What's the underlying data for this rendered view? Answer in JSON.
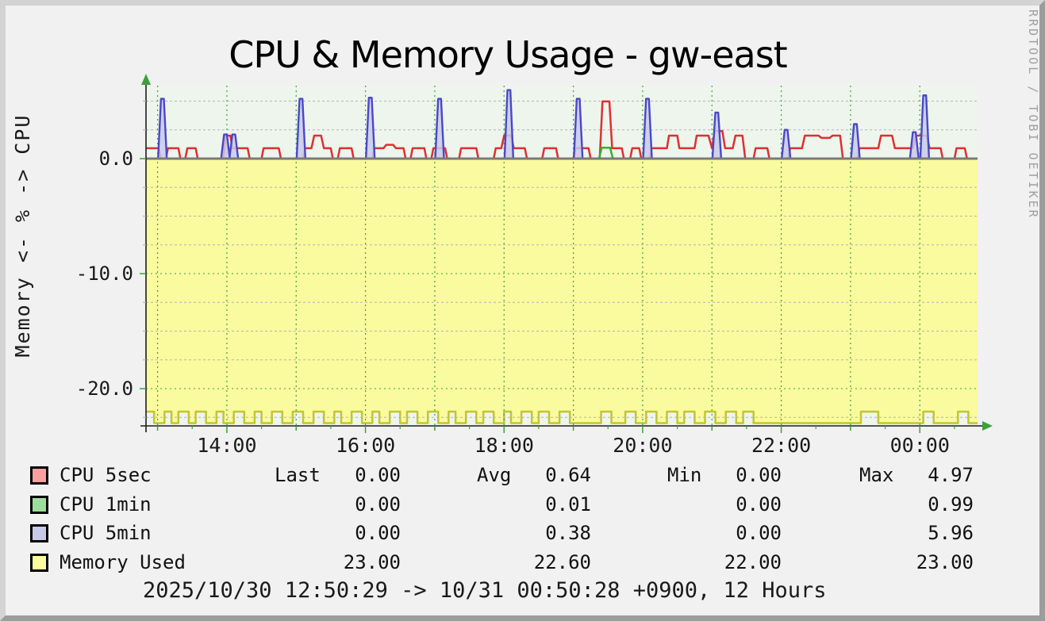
{
  "header": {
    "title": "CPU & Memory Usage - gw-east"
  },
  "watermark": "RRDTOOL / TOBI OETIKER",
  "footer": {
    "range_text": "2025/10/30 12:50:29 -> 10/31 00:50:28 +0900, 12 Hours"
  },
  "colors": {
    "page_bg": "#f1f1f1",
    "plot_bg": "#eef5ec",
    "frame_light": "#d3d3d3",
    "frame_dark": "#9c9c9c",
    "grid_major": "#3aa23a",
    "grid_minor": "#b4b4b4",
    "zero_line": "#7a7a7a",
    "axis": "#1c1c1c",
    "cpu5sec_line": "#dd3030",
    "cpu1min_line": "#2fb32f",
    "cpu5min_line": "#4848c8",
    "cpu5min_fill": "#c9c9e9",
    "memory_fill": "#fafa9e",
    "memory_line": "#c2c62e"
  },
  "legend": {
    "headers": [
      "Last",
      "Avg",
      "Min",
      "Max"
    ],
    "rows": [
      {
        "label": "CPU 5sec",
        "swatch": "#f89f9f",
        "last": "0.00",
        "avg": "0.64",
        "min": "0.00",
        "max": "4.97"
      },
      {
        "label": "CPU 1min",
        "swatch": "#9cdf9c",
        "last": "0.00",
        "avg": "0.01",
        "min": "0.00",
        "max": "0.99"
      },
      {
        "label": "CPU 5min",
        "swatch": "#c9c9e9",
        "last": "0.00",
        "avg": "0.38",
        "min": "0.00",
        "max": "5.96"
      },
      {
        "label": "Memory Used",
        "swatch": "#fafa9e",
        "last": "23.00",
        "avg": "22.60",
        "min": "22.00",
        "max": "23.00"
      }
    ]
  },
  "chart_data": {
    "type": "area",
    "title": "CPU & Memory Usage - gw-east",
    "xlabel": "",
    "ylabel": "Memory <- % -> CPU",
    "x_range_hours": [
      12.833,
      24.833
    ],
    "ylim": [
      -23.2,
      6.3
    ],
    "grid": true,
    "legend_position": "bottom",
    "x_ticks": [
      {
        "t": 14,
        "label": "14:00"
      },
      {
        "t": 16,
        "label": "16:00"
      },
      {
        "t": 18,
        "label": "18:00"
      },
      {
        "t": 20,
        "label": "20:00"
      },
      {
        "t": 22,
        "label": "22:00"
      },
      {
        "t": 24,
        "label": "00:00"
      }
    ],
    "y_ticks": [
      {
        "v": 0,
        "label": "0.0"
      },
      {
        "v": -10,
        "label": "-10.0"
      },
      {
        "v": -20,
        "label": "-20.0"
      }
    ],
    "y_minor_ticks": [
      5,
      2.5,
      -2.5,
      -5,
      -7.5,
      -12.5,
      -15,
      -17.5,
      -22.5
    ],
    "x_grid_hours": [
      13,
      14,
      15,
      16,
      17,
      18,
      19,
      20,
      21,
      22,
      23,
      24
    ],
    "series": [
      {
        "name": "CPU 5sec",
        "type": "line",
        "unit": "%",
        "points": [
          [
            12.83,
            0.9
          ],
          [
            13.02,
            0.9
          ],
          [
            13.05,
            0
          ],
          [
            13.12,
            0
          ],
          [
            13.15,
            0.9
          ],
          [
            13.3,
            0.9
          ],
          [
            13.33,
            0
          ],
          [
            13.4,
            0
          ],
          [
            13.43,
            0.9
          ],
          [
            13.55,
            0.9
          ],
          [
            13.58,
            0
          ],
          [
            13.95,
            0
          ],
          [
            13.98,
            2
          ],
          [
            14.05,
            2
          ],
          [
            14.08,
            0.9
          ],
          [
            14.3,
            0.9
          ],
          [
            14.33,
            0
          ],
          [
            14.5,
            0
          ],
          [
            14.53,
            0.9
          ],
          [
            14.75,
            0.9
          ],
          [
            14.78,
            0
          ],
          [
            15.1,
            0
          ],
          [
            15.13,
            0.9
          ],
          [
            15.22,
            0.9
          ],
          [
            15.26,
            2
          ],
          [
            15.36,
            2
          ],
          [
            15.4,
            0.9
          ],
          [
            15.5,
            0.9
          ],
          [
            15.53,
            0
          ],
          [
            15.6,
            0
          ],
          [
            15.63,
            0.9
          ],
          [
            15.8,
            0.9
          ],
          [
            15.83,
            0
          ],
          [
            16.1,
            0
          ],
          [
            16.13,
            0.9
          ],
          [
            16.26,
            0.9
          ],
          [
            16.3,
            1.2
          ],
          [
            16.4,
            1.2
          ],
          [
            16.44,
            0.9
          ],
          [
            16.55,
            0.9
          ],
          [
            16.58,
            0
          ],
          [
            16.65,
            0
          ],
          [
            16.68,
            0.9
          ],
          [
            16.85,
            0.9
          ],
          [
            16.88,
            0
          ],
          [
            16.95,
            0
          ],
          [
            16.98,
            0.9
          ],
          [
            17.15,
            0.9
          ],
          [
            17.18,
            0
          ],
          [
            17.35,
            0
          ],
          [
            17.38,
            0.9
          ],
          [
            17.6,
            0.9
          ],
          [
            17.63,
            0
          ],
          [
            17.85,
            0
          ],
          [
            17.88,
            0.9
          ],
          [
            17.96,
            0.9
          ],
          [
            18.0,
            2
          ],
          [
            18.1,
            2
          ],
          [
            18.14,
            0.9
          ],
          [
            18.3,
            0.9
          ],
          [
            18.33,
            0
          ],
          [
            18.55,
            0
          ],
          [
            18.58,
            0.9
          ],
          [
            18.75,
            0.9
          ],
          [
            18.78,
            0
          ],
          [
            19.0,
            0
          ],
          [
            19.03,
            0.9
          ],
          [
            19.22,
            0.9
          ],
          [
            19.25,
            0
          ],
          [
            19.38,
            0
          ],
          [
            19.42,
            4.97
          ],
          [
            19.52,
            4.97
          ],
          [
            19.56,
            0.9
          ],
          [
            19.7,
            0.9
          ],
          [
            19.73,
            0
          ],
          [
            19.82,
            0
          ],
          [
            19.85,
            0.9
          ],
          [
            19.95,
            0.9
          ],
          [
            19.98,
            0
          ],
          [
            20.1,
            0
          ],
          [
            20.13,
            0.9
          ],
          [
            20.35,
            0.9
          ],
          [
            20.38,
            2
          ],
          [
            20.5,
            2
          ],
          [
            20.53,
            0.9
          ],
          [
            20.75,
            0.9
          ],
          [
            20.78,
            2
          ],
          [
            20.95,
            2
          ],
          [
            21.0,
            0.9
          ],
          [
            21.04,
            2.4
          ],
          [
            21.15,
            2.4
          ],
          [
            21.19,
            0.9
          ],
          [
            21.3,
            0.9
          ],
          [
            21.34,
            2
          ],
          [
            21.44,
            2
          ],
          [
            21.48,
            0
          ],
          [
            21.6,
            0
          ],
          [
            21.63,
            0.9
          ],
          [
            21.8,
            0.9
          ],
          [
            21.83,
            0
          ],
          [
            22.1,
            0
          ],
          [
            22.13,
            0.9
          ],
          [
            22.3,
            0.9
          ],
          [
            22.34,
            2
          ],
          [
            22.54,
            2
          ],
          [
            22.58,
            1.8
          ],
          [
            22.7,
            1.8
          ],
          [
            22.74,
            2
          ],
          [
            22.85,
            2
          ],
          [
            22.89,
            0
          ],
          [
            23.1,
            0
          ],
          [
            23.13,
            0.9
          ],
          [
            23.4,
            0.9
          ],
          [
            23.44,
            2
          ],
          [
            23.6,
            2
          ],
          [
            23.64,
            0.9
          ],
          [
            23.9,
            0.9
          ],
          [
            23.94,
            2
          ],
          [
            24.1,
            2
          ],
          [
            24.14,
            0.9
          ],
          [
            24.3,
            0.9
          ],
          [
            24.33,
            0
          ],
          [
            24.5,
            0
          ],
          [
            24.53,
            0.9
          ],
          [
            24.65,
            0.9
          ],
          [
            24.68,
            0
          ],
          [
            24.83,
            0
          ]
        ]
      },
      {
        "name": "CPU 1min",
        "type": "line",
        "unit": "%",
        "points": [
          [
            12.83,
            0
          ],
          [
            19.37,
            0
          ],
          [
            19.41,
            0.95
          ],
          [
            19.53,
            0.95
          ],
          [
            19.57,
            0
          ],
          [
            24.83,
            0
          ]
        ]
      },
      {
        "name": "CPU 5min",
        "type": "spike-area",
        "unit": "%",
        "spikes": [
          [
            13.07,
            5.2
          ],
          [
            13.98,
            2.1
          ],
          [
            14.1,
            2.1
          ],
          [
            15.07,
            5.2
          ],
          [
            16.07,
            5.3
          ],
          [
            17.07,
            5.2
          ],
          [
            18.07,
            5.96
          ],
          [
            19.07,
            5.2
          ],
          [
            20.07,
            5.2
          ],
          [
            21.07,
            4.0
          ],
          [
            22.07,
            2.5
          ],
          [
            23.07,
            3.0
          ],
          [
            23.92,
            2.3
          ],
          [
            24.07,
            5.5
          ]
        ]
      },
      {
        "name": "Memory Used",
        "type": "step-area-inverted",
        "unit": "%",
        "steps": [
          [
            12.83,
            22
          ],
          [
            12.95,
            23
          ],
          [
            13.1,
            22
          ],
          [
            13.2,
            23
          ],
          [
            13.3,
            22
          ],
          [
            13.45,
            23
          ],
          [
            13.55,
            22
          ],
          [
            13.7,
            23
          ],
          [
            13.85,
            22
          ],
          [
            13.95,
            23
          ],
          [
            14.1,
            22
          ],
          [
            14.25,
            23
          ],
          [
            14.4,
            22
          ],
          [
            14.5,
            23
          ],
          [
            14.65,
            22
          ],
          [
            14.8,
            23
          ],
          [
            14.95,
            22
          ],
          [
            15.1,
            23
          ],
          [
            15.25,
            22
          ],
          [
            15.4,
            23
          ],
          [
            15.55,
            22
          ],
          [
            15.65,
            23
          ],
          [
            15.8,
            22
          ],
          [
            15.95,
            23
          ],
          [
            16.1,
            22
          ],
          [
            16.2,
            23
          ],
          [
            16.35,
            22
          ],
          [
            16.5,
            23
          ],
          [
            16.6,
            22
          ],
          [
            16.75,
            23
          ],
          [
            16.9,
            22
          ],
          [
            17.05,
            23
          ],
          [
            17.2,
            22
          ],
          [
            17.3,
            23
          ],
          [
            17.45,
            22
          ],
          [
            17.6,
            23
          ],
          [
            17.7,
            22
          ],
          [
            17.85,
            23
          ],
          [
            18.0,
            22
          ],
          [
            18.1,
            23
          ],
          [
            18.25,
            22
          ],
          [
            18.4,
            23
          ],
          [
            18.5,
            22
          ],
          [
            18.65,
            23
          ],
          [
            18.8,
            22
          ],
          [
            18.95,
            23
          ],
          [
            19.4,
            22
          ],
          [
            19.55,
            23
          ],
          [
            19.75,
            22
          ],
          [
            19.9,
            23
          ],
          [
            20.05,
            22
          ],
          [
            20.2,
            23
          ],
          [
            20.35,
            22
          ],
          [
            20.5,
            23
          ],
          [
            20.6,
            22
          ],
          [
            20.75,
            23
          ],
          [
            20.9,
            22
          ],
          [
            21.05,
            23
          ],
          [
            21.2,
            22
          ],
          [
            21.35,
            23
          ],
          [
            21.45,
            22
          ],
          [
            21.6,
            23
          ],
          [
            23.15,
            22
          ],
          [
            23.4,
            23
          ],
          [
            24.05,
            22
          ],
          [
            24.2,
            23
          ],
          [
            24.55,
            22
          ],
          [
            24.7,
            23
          ]
        ]
      }
    ]
  }
}
